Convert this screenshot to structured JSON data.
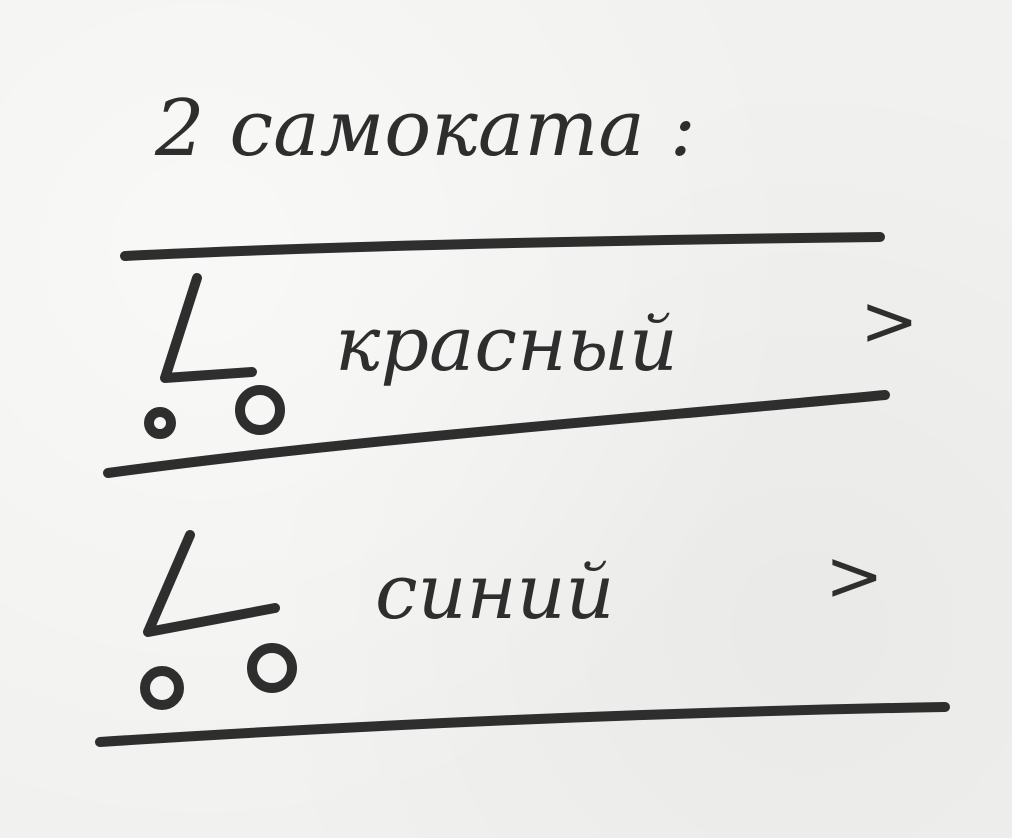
{
  "header": {
    "title": "2 самоката :"
  },
  "list": {
    "items": [
      {
        "label": "красный",
        "icon": "scooter-icon",
        "chevron": ">"
      },
      {
        "label": "синий",
        "icon": "scooter-icon",
        "chevron": ">"
      }
    ]
  },
  "colors": {
    "ink": "#2e2e2e",
    "paper": "#f1f1ef"
  }
}
